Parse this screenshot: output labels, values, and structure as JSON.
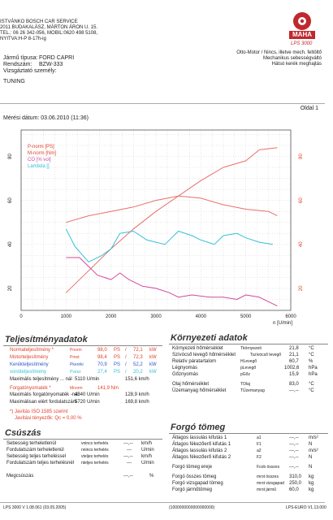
{
  "company": {
    "lines": [
      "ISTVÁNKO BOSCH CAR SERVICE",
      "2011 BUDAKALÁSZ, MÁRTON ÁRON U. 15.",
      "TEL.: 06 26 342-056, MOBIL:0620 498 5108,",
      "NYITVA:H-P 8-17h-ig"
    ],
    "logo_text": "MAHA",
    "model": "LPS 3000"
  },
  "vehicle": {
    "type_label": "Jármű típusa:",
    "type_value": "FORD CAPRI",
    "plate_label": "Rendszám:",
    "plate_value": "BZW-333",
    "tester_label": "Vizsgáztató személy:",
    "tester_value": "",
    "note": "TUNING"
  },
  "mode": {
    "line1": "Otto-Motor / Nincs, illetve mech. feltöltő",
    "line2": "Mechanikus sebességváltó",
    "line3": "Hátsó kerék meghajtás"
  },
  "page": {
    "label": "Oldal 1"
  },
  "measure": {
    "date_label": "Mérési dátum: 03.06.2010 (11:36)"
  },
  "chart_data": {
    "type": "line",
    "xlabel": "n [U/min]",
    "xlim": [
      0,
      6000
    ],
    "xticks": [
      "0",
      "1000",
      "2000",
      "3000",
      "4000",
      "5000",
      "6000"
    ],
    "left_yticks": [
      "20",
      "40",
      "60",
      "80"
    ],
    "right_yticks": [
      "20",
      "40",
      "60",
      "80",
      "100"
    ],
    "legend": [
      {
        "name": "P-norm [PS]",
        "color": "#e0402a"
      },
      {
        "name": "M-norm [Nm]",
        "color": "#e0402a"
      },
      {
        "name": "CO [% vol]",
        "color": "#d04a9a"
      },
      {
        "name": "Lambda []",
        "color": "#35c0d8"
      }
    ],
    "series": [
      {
        "name": "P-norm [PS]",
        "color": "#e8706a",
        "x": [
          1000,
          1500,
          2000,
          2500,
          3000,
          3500,
          4000,
          4500,
          5000,
          5300,
          5700
        ],
        "y": [
          18,
          28,
          38,
          47,
          55,
          62,
          69,
          75,
          78,
          83,
          84
        ]
      },
      {
        "name": "M-norm [Nm]",
        "color": "#e8706a",
        "x": [
          1000,
          1500,
          2000,
          2500,
          3000,
          3500,
          4000,
          4500,
          5000,
          5500,
          5700
        ],
        "y": [
          50,
          53,
          55,
          57,
          60,
          62,
          61,
          58,
          56,
          55,
          53
        ]
      },
      {
        "name": "CO [% vol]",
        "color": "#d04a9a",
        "x": [
          1000,
          1300,
          1500,
          1700,
          2000,
          2200,
          2400,
          2700,
          3000,
          3300,
          3500,
          3800,
          4200,
          4500,
          4800,
          5000,
          5300,
          5500,
          5700
        ],
        "y": [
          34,
          34,
          30,
          26,
          24,
          27,
          24,
          21,
          20,
          18,
          16,
          17,
          16,
          16,
          15,
          17,
          16,
          14,
          12
        ]
      },
      {
        "name": "Lambda []",
        "color": "#35c0d8",
        "x": [
          1000,
          1200,
          1500,
          1800,
          2000,
          2200,
          2500,
          2800,
          3000,
          3200,
          3500,
          3800,
          4000,
          4300,
          4500,
          4800,
          5000,
          5300,
          5600
        ],
        "y": [
          47,
          39,
          32,
          35,
          38,
          45,
          46,
          42,
          41,
          40,
          46,
          44,
          42,
          40,
          44,
          45,
          43,
          41,
          40
        ]
      }
    ]
  },
  "performance": {
    "title": "Teljesítményadatok",
    "rows": [
      {
        "label": "Normateljesítmény *",
        "sym": "Pnorm",
        "v1": "98,0",
        "u1": "PS",
        "v2": "72,1",
        "u2": "kW",
        "color": "red"
      },
      {
        "label": "Motorteljesítmény",
        "sym": "Pmot",
        "v1": "98,4",
        "u1": "PS",
        "v2": "72,3",
        "u2": "kW",
        "color": "red"
      },
      {
        "label": "Kerékteljesítmény",
        "sym": "Pkeréki",
        "v1": "70,9",
        "u1": "PS",
        "v2": "52,2",
        "u2": "kW",
        "color": "blue"
      },
      {
        "label": "vonóteljesítmény",
        "sym": "Pvesz",
        "v1": "27,4",
        "u1": "PS",
        "v2": "20,2",
        "u2": "kW",
        "color": "cyan"
      }
    ],
    "max_power_label": "Maximális teljesítmény ... nál",
    "max_power_rpm": "5110 U/min",
    "max_power_val": "151,6 km/h",
    "torque_label": "Forgatónyomaték *",
    "torque_sym": "Mnorm",
    "torque_val": "141,9 Nm",
    "max_torque_label": "Maximális forgatónyomaték -nál",
    "max_torque_rpm": "4340 U/min",
    "max_torque_val": "128,9 km/h",
    "max_rpm_label": "Maximálisan elért fordulatszám",
    "max_rpm_rpm": "5720 U/min",
    "max_rpm_val": "169,8 km/h",
    "iso_line1": "*) Javítás ISO 1585 szerint",
    "iso_line2": "Javítási tényezők: Qc = 0,00 %"
  },
  "environment": {
    "title": "Környezeti adatok",
    "rows": [
      {
        "label": "Környezeti hőmérséklet",
        "sym": "Tkörnyezeti",
        "val": "21,8",
        "unit": "°C"
      },
      {
        "label": "Szívócső levegő hőmérséklet",
        "sym": "Tszívócső levegő",
        "val": "21,1",
        "unit": "°C"
      },
      {
        "label": "Relatív páratartalom",
        "sym": "HLevegő",
        "val": "60,7",
        "unit": "%"
      },
      {
        "label": "Légnyomás",
        "sym": "pLevegő",
        "val": "1002,6",
        "unit": "hPa"
      },
      {
        "label": "Gőznyomás",
        "sym": "pGőz",
        "val": "15,9",
        "unit": "hPa"
      },
      {
        "label": "Olaj hőmérséklet",
        "sym": "TOlaj",
        "val": "83,0",
        "unit": "°C"
      },
      {
        "label": "Üzemanyag hőmérséklet",
        "sym": "TÜzemanyag",
        "val": "---,--",
        "unit": "°C"
      }
    ]
  },
  "speed": {
    "title": "Csúszás",
    "rows": [
      {
        "label": "Sebesség terheletlenül",
        "sym": "vnincs terhelés",
        "val": "---,--",
        "unit": "km/h"
      },
      {
        "label": "Fordulatszám terheletlenül",
        "sym": "nnincs terhelés",
        "val": "---",
        "unit": "U/min"
      },
      {
        "label": "Sebesség teljes terheléssel",
        "sym": "vteljes terhelés",
        "val": "---,--",
        "unit": "km/h"
      },
      {
        "label": "Fordulatszám teljes terhelésnél",
        "sym": "nteljes terhelés",
        "val": "---",
        "unit": "U/min"
      }
    ],
    "slip_label": "Megcsúszás",
    "slip_val": "---,--",
    "slip_unit": "%"
  },
  "mass": {
    "title": "Forgó tömeg",
    "rows": [
      {
        "label": "Átlagos lassulás kifutás 1",
        "sym": "a1",
        "val": "---,--",
        "unit": "m/s²"
      },
      {
        "label": "Átlagos fékezőerő kifutás 1",
        "sym": "F1",
        "val": "---,--",
        "unit": "N"
      },
      {
        "label": "Átlagos lassulás kifutás 2",
        "sym": "a2",
        "val": "---,--",
        "unit": "m/s²"
      },
      {
        "label": "Átlagos fékezőerő kifutás 2",
        "sym": "F2",
        "val": "---,--",
        "unit": "N"
      },
      {
        "label": "Forgó tömeg ereje",
        "sym": "Fcob összes",
        "val": "---,--",
        "unit": "N"
      },
      {
        "label": "Forgó összes tömeg",
        "sym": "mrot összes",
        "val": "310,0",
        "unit": "kg"
      },
      {
        "label": "Forgó vizsgapad tömeg",
        "sym": "mrot vizsgapad",
        "val": "250,0",
        "unit": "kg"
      },
      {
        "label": "Forgó járműtömeg",
        "sym": "mrot jármű",
        "val": "60,0",
        "unit": "kg"
      }
    ]
  },
  "footer": {
    "left": "LPS 3000 V 1.08.061 (03.05.2005)",
    "center": "(1000000000000000000)",
    "right": "LPS-EURO V1.13.000"
  }
}
